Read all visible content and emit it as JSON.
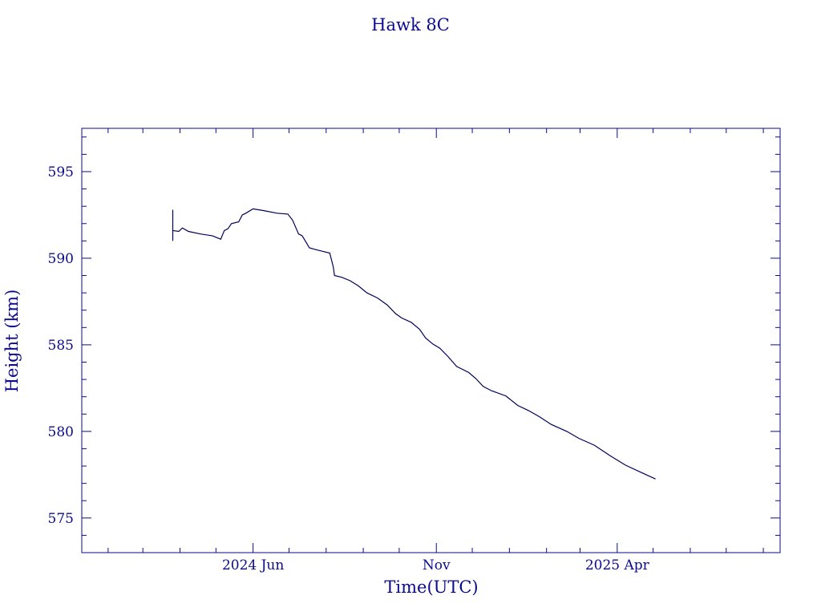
{
  "colors": {
    "ink": "#0b0b8c",
    "line": "#00005a",
    "background": "#ffffff"
  },
  "chart_data": {
    "type": "line",
    "title": "Hawk 8C",
    "xlabel": "Time(UTC)",
    "ylabel": "Height (km)",
    "x_axis_type": "date",
    "xlim": [
      "2024-01-10",
      "2025-08-15"
    ],
    "ylim": [
      573,
      597.5
    ],
    "x_ticks": [
      {
        "date": "2024-06-01",
        "label": "2024 Jun"
      },
      {
        "date": "2024-11-01",
        "label": "Nov"
      },
      {
        "date": "2025-04-01",
        "label": "2025 Apr"
      }
    ],
    "y_ticks": [
      575,
      580,
      585,
      590,
      595
    ],
    "grid": false,
    "legend": "none",
    "series": [
      {
        "points": [
          [
            "2024-03-26",
            592.8
          ],
          [
            "2024-03-26",
            591.0
          ],
          [
            "2024-03-26",
            591.6
          ],
          [
            "2024-03-31",
            591.55
          ],
          [
            "2024-04-03",
            591.75
          ],
          [
            "2024-04-08",
            591.55
          ],
          [
            "2024-04-18",
            591.4
          ],
          [
            "2024-04-28",
            591.3
          ],
          [
            "2024-05-05",
            591.1
          ],
          [
            "2024-05-08",
            591.6
          ],
          [
            "2024-05-11",
            591.7
          ],
          [
            "2024-05-14",
            592.0
          ],
          [
            "2024-05-20",
            592.1
          ],
          [
            "2024-05-23",
            592.5
          ],
          [
            "2024-05-26",
            592.6
          ],
          [
            "2024-06-01",
            592.85
          ],
          [
            "2024-06-10",
            592.75
          ],
          [
            "2024-06-21",
            592.6
          ],
          [
            "2024-06-30",
            592.55
          ],
          [
            "2024-07-04",
            592.2
          ],
          [
            "2024-07-09",
            591.4
          ],
          [
            "2024-07-12",
            591.3
          ],
          [
            "2024-07-18",
            590.6
          ],
          [
            "2024-07-23",
            590.5
          ],
          [
            "2024-07-29",
            590.4
          ],
          [
            "2024-08-04",
            590.3
          ],
          [
            "2024-08-07",
            589.5
          ],
          [
            "2024-08-08",
            589.0
          ],
          [
            "2024-08-14",
            588.9
          ],
          [
            "2024-08-21",
            588.7
          ],
          [
            "2024-08-28",
            588.4
          ],
          [
            "2024-09-04",
            588.0
          ],
          [
            "2024-09-13",
            587.7
          ],
          [
            "2024-09-21",
            587.3
          ],
          [
            "2024-09-28",
            586.8
          ],
          [
            "2024-10-03",
            586.55
          ],
          [
            "2024-10-11",
            586.3
          ],
          [
            "2024-10-18",
            585.9
          ],
          [
            "2024-10-23",
            585.4
          ],
          [
            "2024-10-29",
            585.05
          ],
          [
            "2024-11-04",
            584.8
          ],
          [
            "2024-11-11",
            584.3
          ],
          [
            "2024-11-18",
            583.75
          ],
          [
            "2024-11-28",
            583.4
          ],
          [
            "2024-12-04",
            583.05
          ],
          [
            "2024-12-10",
            582.6
          ],
          [
            "2024-12-17",
            582.35
          ],
          [
            "2024-12-29",
            582.05
          ],
          [
            "2025-01-08",
            581.5
          ],
          [
            "2025-01-17",
            581.2
          ],
          [
            "2025-01-26",
            580.85
          ],
          [
            "2025-02-05",
            580.4
          ],
          [
            "2025-02-18",
            580.0
          ],
          [
            "2025-02-28",
            579.6
          ],
          [
            "2025-03-13",
            579.2
          ],
          [
            "2025-03-26",
            578.6
          ],
          [
            "2025-04-08",
            578.05
          ],
          [
            "2025-04-22",
            577.6
          ],
          [
            "2025-05-03",
            577.25
          ]
        ]
      }
    ]
  }
}
